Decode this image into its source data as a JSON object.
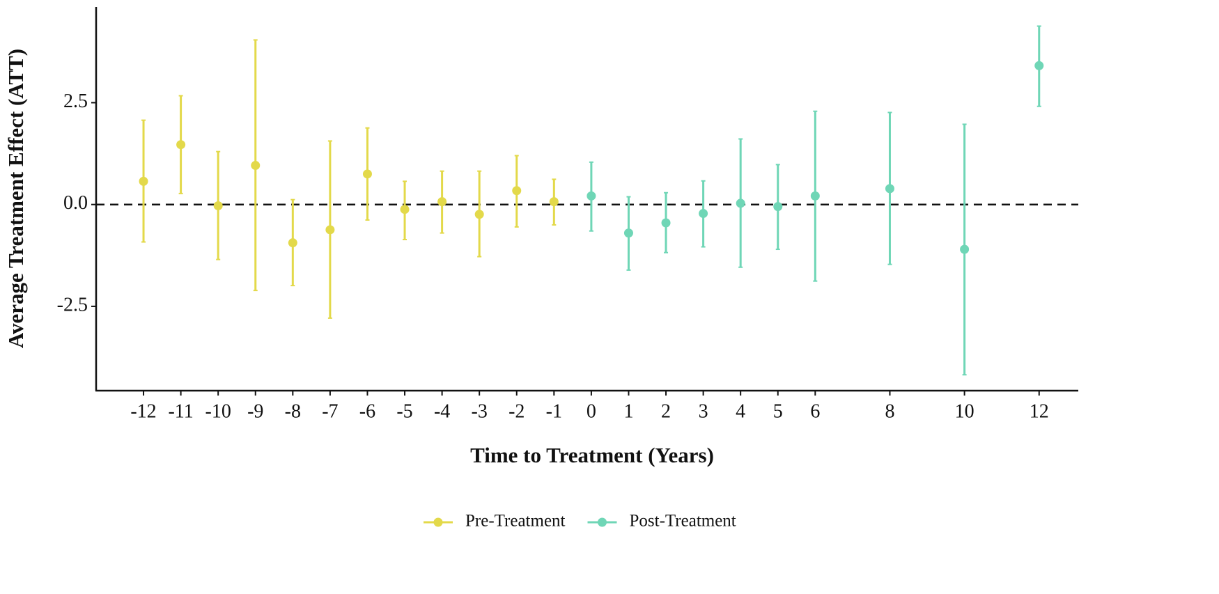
{
  "chart_data": {
    "type": "errorbar",
    "x_label": "Time to Treatment (Years)",
    "y_label": "Average Treatment Effect (ATT)",
    "xlim": [
      -13.27,
      13.05
    ],
    "ylim": [
      -4.57,
      4.85
    ],
    "xticks": [
      -12,
      -11,
      -10,
      -9,
      -8,
      -7,
      -6,
      -5,
      -4,
      -3,
      -2,
      -1,
      0,
      1,
      2,
      3,
      4,
      5,
      6,
      8,
      10,
      12
    ],
    "yticks": [
      -2.5,
      {
        "value": 0,
        "label": "0.0"
      },
      2.5
    ],
    "hline": 0,
    "legend": "bottom",
    "series": [
      {
        "name": "Pre-Treatment",
        "color": "#e3d94a",
        "x": [
          -12,
          -11,
          -10,
          -9,
          -8,
          -7,
          -6,
          -5,
          -4,
          -3,
          -2,
          -1
        ],
        "values": [
          0.57,
          1.47,
          -0.03,
          0.96,
          -0.94,
          -0.62,
          0.75,
          -0.12,
          0.07,
          -0.24,
          0.34,
          0.07
        ],
        "lower": [
          -0.92,
          0.27,
          -1.35,
          -2.11,
          -1.99,
          -2.79,
          -0.38,
          -0.86,
          -0.7,
          -1.28,
          -0.55,
          -0.5
        ],
        "upper": [
          2.07,
          2.67,
          1.3,
          4.04,
          0.12,
          1.56,
          1.88,
          0.57,
          0.82,
          0.82,
          1.2,
          0.62
        ]
      },
      {
        "name": "Post-Treatment",
        "color": "#6fd6b6",
        "x": [
          0,
          1,
          2,
          3,
          4,
          5,
          6,
          8,
          10,
          12
        ],
        "values": [
          0.21,
          -0.7,
          -0.45,
          -0.22,
          0.03,
          -0.05,
          0.21,
          0.39,
          -1.1,
          3.41
        ],
        "lower": [
          -0.65,
          -1.61,
          -1.18,
          -1.04,
          -1.54,
          -1.1,
          -1.88,
          -1.47,
          -4.18,
          2.41
        ],
        "upper": [
          1.04,
          0.19,
          0.29,
          0.58,
          1.61,
          0.98,
          2.29,
          2.26,
          1.97,
          4.38
        ]
      }
    ]
  }
}
